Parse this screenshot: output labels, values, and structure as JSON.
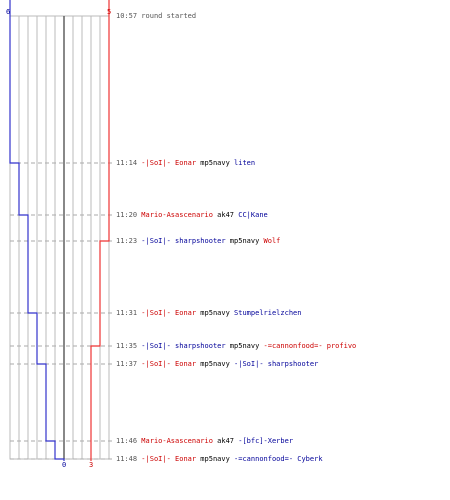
{
  "colors": {
    "team_red": "#cc0000",
    "team_blue": "#000099",
    "weapon": "#000000",
    "time": "#555555",
    "grid": "#bbbbbb",
    "center": "#555555",
    "dash": "#aaaaaa",
    "red_line": "#ee3333",
    "blue_line": "#3333cc"
  },
  "score": {
    "blue_max": "6",
    "red_max": "5",
    "blue_end": "0",
    "red_end": "3"
  },
  "events": [
    {
      "time": "10:57",
      "killer": "round started",
      "killer_team": "none",
      "weapon": "",
      "victim": "",
      "victim_team": "none",
      "red_score": 5,
      "blue_score": 6
    },
    {
      "time": "11:14",
      "killer": "-|SoI|- Eonar",
      "killer_team": "red",
      "weapon": "mp5navy",
      "victim": "liten",
      "victim_team": "blue",
      "red_score": 5,
      "blue_score": 5
    },
    {
      "time": "11:20",
      "killer": "Mario-Asascenario",
      "killer_team": "red",
      "weapon": "ak47",
      "victim": "CC|Kane",
      "victim_team": "blue",
      "red_score": 5,
      "blue_score": 4
    },
    {
      "time": "11:23",
      "killer": "-|SoI|- sharpshooter",
      "killer_team": "blue",
      "weapon": "mp5navy",
      "victim": "Wolf",
      "victim_team": "red",
      "red_score": 4,
      "blue_score": 4
    },
    {
      "time": "11:31",
      "killer": "-|SoI|- Eonar",
      "killer_team": "red",
      "weapon": "mp5navy",
      "victim": "Stumpelrielzchen",
      "victim_team": "blue",
      "red_score": 4,
      "blue_score": 3
    },
    {
      "time": "11:35",
      "killer": "-|SoI|- sharpshooter",
      "killer_team": "blue",
      "weapon": "mp5navy",
      "victim": "-=cannonfood=- profivo",
      "victim_team": "red",
      "red_score": 3,
      "blue_score": 3
    },
    {
      "time": "11:37",
      "killer": "-|SoI|- Eonar",
      "killer_team": "red",
      "weapon": "mp5navy",
      "victim": "-|SoI|- sharpshooter",
      "victim_team": "blue",
      "red_score": 3,
      "blue_score": 2
    },
    {
      "time": "11:46",
      "killer": "Mario-Asascenario",
      "killer_team": "red",
      "weapon": "ak47",
      "victim": "-[bfc]-Xerber",
      "victim_team": "blue",
      "red_score": 3,
      "blue_score": 1
    },
    {
      "time": "11:48",
      "killer": "-|SoI|- Eonar",
      "killer_team": "red",
      "weapon": "mp5navy",
      "victim": "-=cannonfood=- Cyberk",
      "victim_team": "blue",
      "red_score": 3,
      "blue_score": 0
    }
  ]
}
